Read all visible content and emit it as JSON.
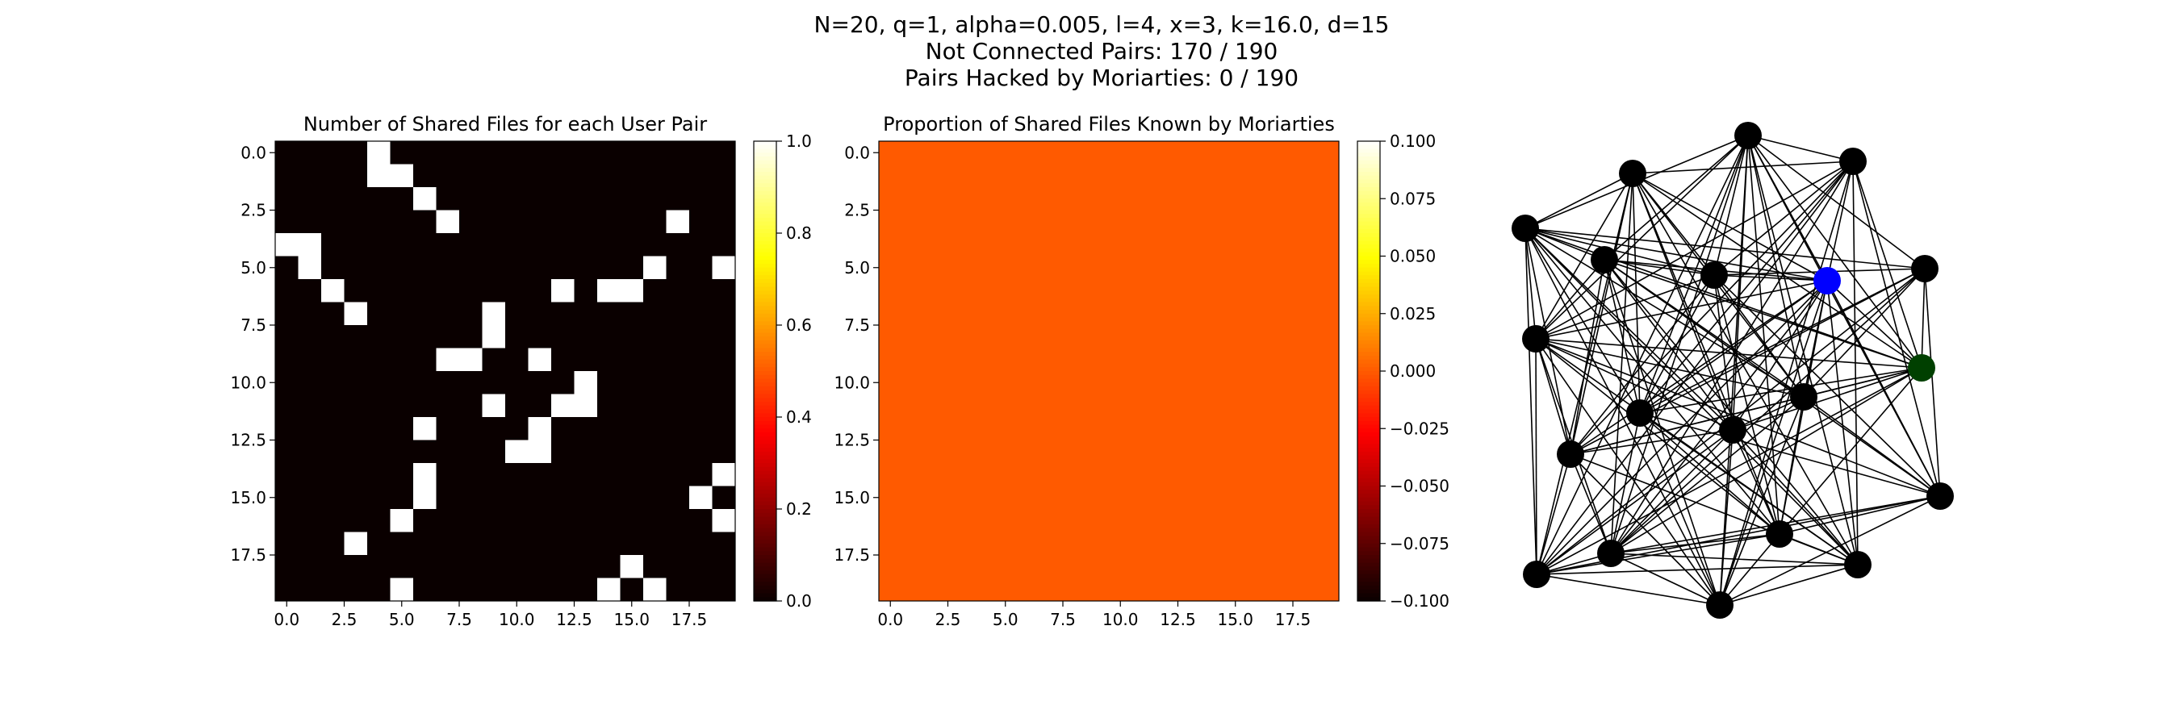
{
  "figure": {
    "suptitle_lines": [
      "N=20, q=1, alpha=0.005, l=4, x=3, k=16.0, d=15",
      "Not Connected Pairs: 170 / 190",
      "Pairs Hacked by Moriarties: 0 / 190"
    ]
  },
  "chart_data": [
    {
      "type": "heatmap",
      "title": "Number of Shared Files for each User Pair",
      "colormap": "hot",
      "n": 20,
      "vmin": 0.0,
      "vmax": 1.0,
      "xticks": [
        "0.0",
        "2.5",
        "5.0",
        "7.5",
        "10.0",
        "12.5",
        "15.0",
        "17.5"
      ],
      "yticks": [
        "0.0",
        "2.5",
        "5.0",
        "7.5",
        "10.0",
        "12.5",
        "15.0",
        "17.5"
      ],
      "colorbar_ticks": [
        "0.0",
        "0.2",
        "0.4",
        "0.6",
        "0.8",
        "1.0"
      ],
      "ones": [
        [
          0,
          4
        ],
        [
          1,
          4
        ],
        [
          1,
          5
        ],
        [
          2,
          6
        ],
        [
          3,
          7
        ],
        [
          3,
          17
        ],
        [
          4,
          0
        ],
        [
          4,
          1
        ],
        [
          5,
          1
        ],
        [
          5,
          16
        ],
        [
          5,
          19
        ],
        [
          6,
          2
        ],
        [
          6,
          12
        ],
        [
          6,
          14
        ],
        [
          6,
          15
        ],
        [
          7,
          3
        ],
        [
          7,
          9
        ],
        [
          8,
          9
        ],
        [
          9,
          7
        ],
        [
          9,
          8
        ],
        [
          9,
          11
        ],
        [
          10,
          13
        ],
        [
          11,
          9
        ],
        [
          11,
          12
        ],
        [
          11,
          13
        ],
        [
          12,
          6
        ],
        [
          12,
          11
        ],
        [
          13,
          10
        ],
        [
          13,
          11
        ],
        [
          14,
          6
        ],
        [
          14,
          19
        ],
        [
          15,
          6
        ],
        [
          15,
          18
        ],
        [
          16,
          5
        ],
        [
          16,
          19
        ],
        [
          17,
          3
        ],
        [
          18,
          15
        ],
        [
          19,
          5
        ],
        [
          19,
          14
        ],
        [
          19,
          16
        ]
      ]
    },
    {
      "type": "heatmap",
      "title": "Proportion of Shared Files Known by Moriarties",
      "colormap": "hot",
      "n": 20,
      "fill_value": 0.0,
      "vmin": -0.1,
      "vmax": 0.1,
      "xticks": [
        "0.0",
        "2.5",
        "5.0",
        "7.5",
        "10.0",
        "12.5",
        "15.0",
        "17.5"
      ],
      "yticks": [
        "0.0",
        "2.5",
        "5.0",
        "7.5",
        "10.0",
        "12.5",
        "15.0",
        "17.5"
      ],
      "colorbar_ticks": [
        "0.100",
        "0.075",
        "0.050",
        "0.025",
        "0.000",
        "−0.025",
        "−0.050",
        "−0.075",
        "−0.100"
      ]
    },
    {
      "type": "network",
      "node_count": 20,
      "node_color": "#000000",
      "highlight_colors": [
        "#0000ff",
        "#004000"
      ],
      "edge_color": "#000000"
    }
  ]
}
